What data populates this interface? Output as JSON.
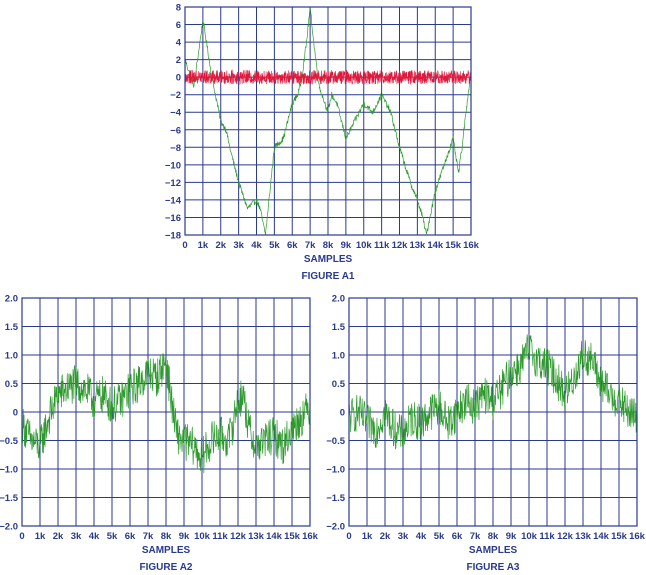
{
  "chart_data": [
    {
      "type": "line",
      "caption": "FIGURE A1",
      "xlabel": "SAMPLES",
      "ylabel": "",
      "xlim": [
        0,
        16000
      ],
      "ylim": [
        -18,
        8
      ],
      "x_tick_labels": [
        "0",
        "1k",
        "2k",
        "3k",
        "4k",
        "5k",
        "6k",
        "7k",
        "8k",
        "9k",
        "10k",
        "11k",
        "12k",
        "13k",
        "14k",
        "15k",
        "16k"
      ],
      "y_tick_labels": [
        "8",
        "6",
        "4",
        "2",
        "0",
        "−2",
        "−4",
        "−6",
        "−8",
        "−10",
        "−12",
        "−14",
        "−16",
        "−18"
      ],
      "grid": true,
      "colors": {
        "grid": "#2a3a8c",
        "series_1": "#2e9a2e",
        "series_2": "#e0193c"
      },
      "series": [
        {
          "color": "#2e9a2e",
          "x": [
            0,
            500,
            1000,
            1200,
            1500,
            1800,
            2000,
            2300,
            2500,
            3000,
            3500,
            4000,
            4200,
            4500,
            4800,
            5000,
            5500,
            6000,
            6300,
            6500,
            6800,
            7000,
            7200,
            7500,
            8000,
            8200,
            8500,
            9000,
            9500,
            10000,
            10500,
            11000,
            11500,
            12000,
            12300,
            12600,
            13000,
            13300,
            13500,
            14000,
            14500,
            15000,
            15300,
            15500,
            16000
          ],
          "y": [
            2,
            -1,
            6.5,
            4,
            0,
            -3,
            -5,
            -6,
            -8,
            -12,
            -15,
            -14,
            -15,
            -18,
            -12,
            -8,
            -7,
            -3,
            -2,
            -0.5,
            4,
            8,
            4,
            -1,
            -4,
            -2,
            -3,
            -7,
            -5,
            -3,
            -4,
            -2,
            -4,
            -8,
            -10,
            -12,
            -14,
            -16,
            -18,
            -13,
            -10,
            -7,
            -11,
            -8,
            1
          ]
        },
        {
          "color": "#e0193c",
          "x": [
            0,
            16000
          ],
          "y": [
            0,
            0
          ],
          "note_amplitude": 0.8
        }
      ]
    },
    {
      "type": "line",
      "caption": "FIGURE A2",
      "xlabel": "SAMPLES",
      "ylabel": "",
      "xlim": [
        0,
        16000
      ],
      "ylim": [
        -2.0,
        2.0
      ],
      "x_tick_labels": [
        "0",
        "1k",
        "2k",
        "3k",
        "4k",
        "5k",
        "6k",
        "7k",
        "8k",
        "9k",
        "10k",
        "11k",
        "12k",
        "13k",
        "14k",
        "15k",
        "16k"
      ],
      "y_tick_labels": [
        "2.0",
        "1.5",
        "1.0",
        "0.5",
        "0",
        "−0.5",
        "−1.0",
        "−1.5",
        "−2.0"
      ],
      "grid": true,
      "colors": {
        "grid": "#2a3a8c",
        "series_1": "#2e9a2e"
      },
      "series": [
        {
          "color": "#2e9a2e",
          "x": [
            0,
            500,
            1000,
            1500,
            2000,
            2500,
            3000,
            3500,
            4000,
            4500,
            5000,
            5500,
            6000,
            6500,
            7000,
            7500,
            8000,
            8300,
            8600,
            9000,
            9500,
            10000,
            10500,
            11000,
            11500,
            12000,
            12300,
            12600,
            13000,
            13500,
            14000,
            14500,
            15000,
            15500,
            16000
          ],
          "y": [
            -0.2,
            -0.5,
            -0.6,
            -0.1,
            0.3,
            0.4,
            0.5,
            0.4,
            0.2,
            0.3,
            0.1,
            0.2,
            0.4,
            0.5,
            0.7,
            0.6,
            0.9,
            0.2,
            -0.4,
            -0.5,
            -0.6,
            -0.8,
            -0.5,
            -0.4,
            -0.5,
            0.2,
            0.3,
            -0.3,
            -0.6,
            -0.5,
            -0.4,
            -0.6,
            -0.3,
            -0.1,
            0.1
          ]
        }
      ]
    },
    {
      "type": "line",
      "caption": "FIGURE A3",
      "xlabel": "SAMPLES",
      "ylabel": "",
      "xlim": [
        0,
        16000
      ],
      "ylim": [
        -2.0,
        2.0
      ],
      "x_tick_labels": [
        "0",
        "1k",
        "2k",
        "3k",
        "4k",
        "5k",
        "6k",
        "7k",
        "8k",
        "9k",
        "10k",
        "11k",
        "12k",
        "13k",
        "14k",
        "15k",
        "16k"
      ],
      "y_tick_labels": [
        "2.0",
        "1.5",
        "1.0",
        "0.5",
        "0",
        "−0.5",
        "−1.0",
        "−1.5",
        "−2.0"
      ],
      "grid": true,
      "colors": {
        "grid": "#2a3a8c",
        "series_1": "#2e9a2e"
      },
      "series": [
        {
          "color": "#2e9a2e",
          "x": [
            0,
            500,
            1000,
            1500,
            2000,
            2500,
            3000,
            3500,
            4000,
            4500,
            5000,
            5500,
            6000,
            6500,
            7000,
            7500,
            8000,
            8500,
            9000,
            9500,
            10000,
            10500,
            11000,
            11500,
            12000,
            12500,
            13000,
            13500,
            14000,
            14500,
            15000,
            15500,
            16000
          ],
          "y": [
            -0.1,
            0,
            -0.2,
            -0.3,
            0,
            -0.3,
            -0.4,
            -0.1,
            -0.2,
            0,
            0.1,
            -0.2,
            0,
            0.2,
            0.1,
            0.3,
            0.2,
            0.4,
            0.7,
            0.8,
            1.1,
            0.9,
            0.8,
            0.6,
            0.3,
            0.6,
            1.0,
            0.9,
            0.5,
            0.3,
            0.2,
            0,
            -0.1
          ]
        }
      ]
    }
  ]
}
